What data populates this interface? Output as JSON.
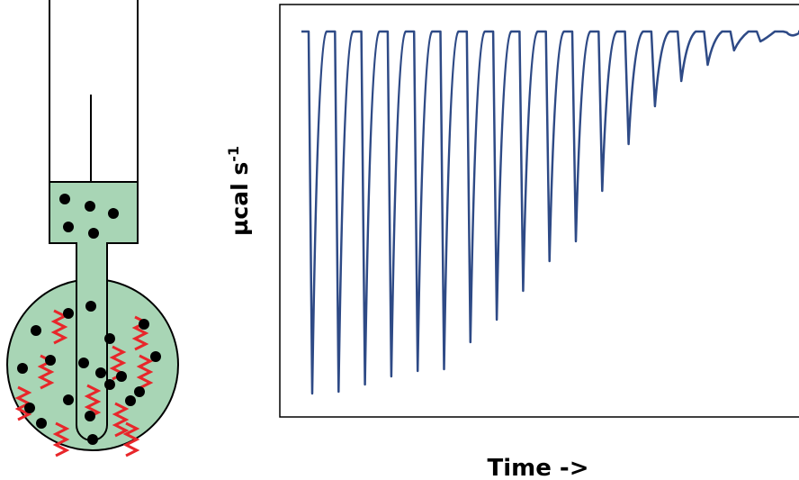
{
  "y_label": {
    "text": "µcal s",
    "superscript": "-1"
  },
  "x_label": "Time ->"
}
